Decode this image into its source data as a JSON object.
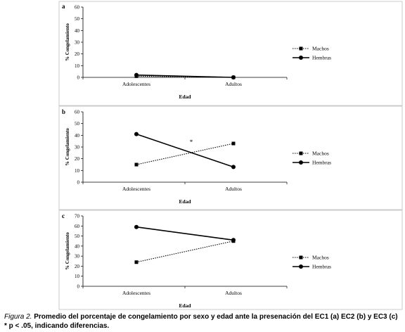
{
  "chart_data": [
    {
      "type": "line",
      "panel_label": "a",
      "categories": [
        "Adolescentes",
        "Adultos"
      ],
      "xlabel": "Edad",
      "ylabel": "% Congelamiento",
      "ylim": [
        0,
        60
      ],
      "yticks": [
        0,
        10,
        20,
        30,
        40,
        50,
        60
      ],
      "series": [
        {
          "name": "Machos",
          "values": [
            1,
            0
          ],
          "style": "dotted",
          "marker": "square"
        },
        {
          "name": "Hembras",
          "values": [
            2,
            0
          ],
          "style": "solid",
          "marker": "circle"
        }
      ],
      "annotation": ""
    },
    {
      "type": "line",
      "panel_label": "b",
      "categories": [
        "Adolescentes",
        "Adultos"
      ],
      "xlabel": "Edad",
      "ylabel": "% Congelamiento",
      "ylim": [
        0,
        60
      ],
      "yticks": [
        0,
        10,
        20,
        30,
        40,
        50,
        60
      ],
      "series": [
        {
          "name": "Machos",
          "values": [
            15,
            33
          ],
          "style": "dotted",
          "marker": "square"
        },
        {
          "name": "Hembras",
          "values": [
            41,
            13
          ],
          "style": "solid",
          "marker": "circle"
        }
      ],
      "annotation": "*"
    },
    {
      "type": "line",
      "panel_label": "c",
      "categories": [
        "Adolescentes",
        "Adultos"
      ],
      "xlabel": "Edad",
      "ylabel": "% Congelamiento",
      "ylim": [
        0,
        70
      ],
      "yticks": [
        0,
        10,
        20,
        30,
        40,
        50,
        60,
        70
      ],
      "series": [
        {
          "name": "Machos",
          "values": [
            24,
            45
          ],
          "style": "dotted",
          "marker": "square"
        },
        {
          "name": "Hembras",
          "values": [
            59,
            46
          ],
          "style": "solid",
          "marker": "circle"
        }
      ],
      "annotation": ""
    }
  ],
  "caption": {
    "figure_label": "Figura 2.",
    "text": " Promedio del porcentaje de congelamiento por sexo y edad ante la presenación del EC1 (a) EC2 (b) y EC3 (c) * p < .05, indicando diferencias."
  }
}
